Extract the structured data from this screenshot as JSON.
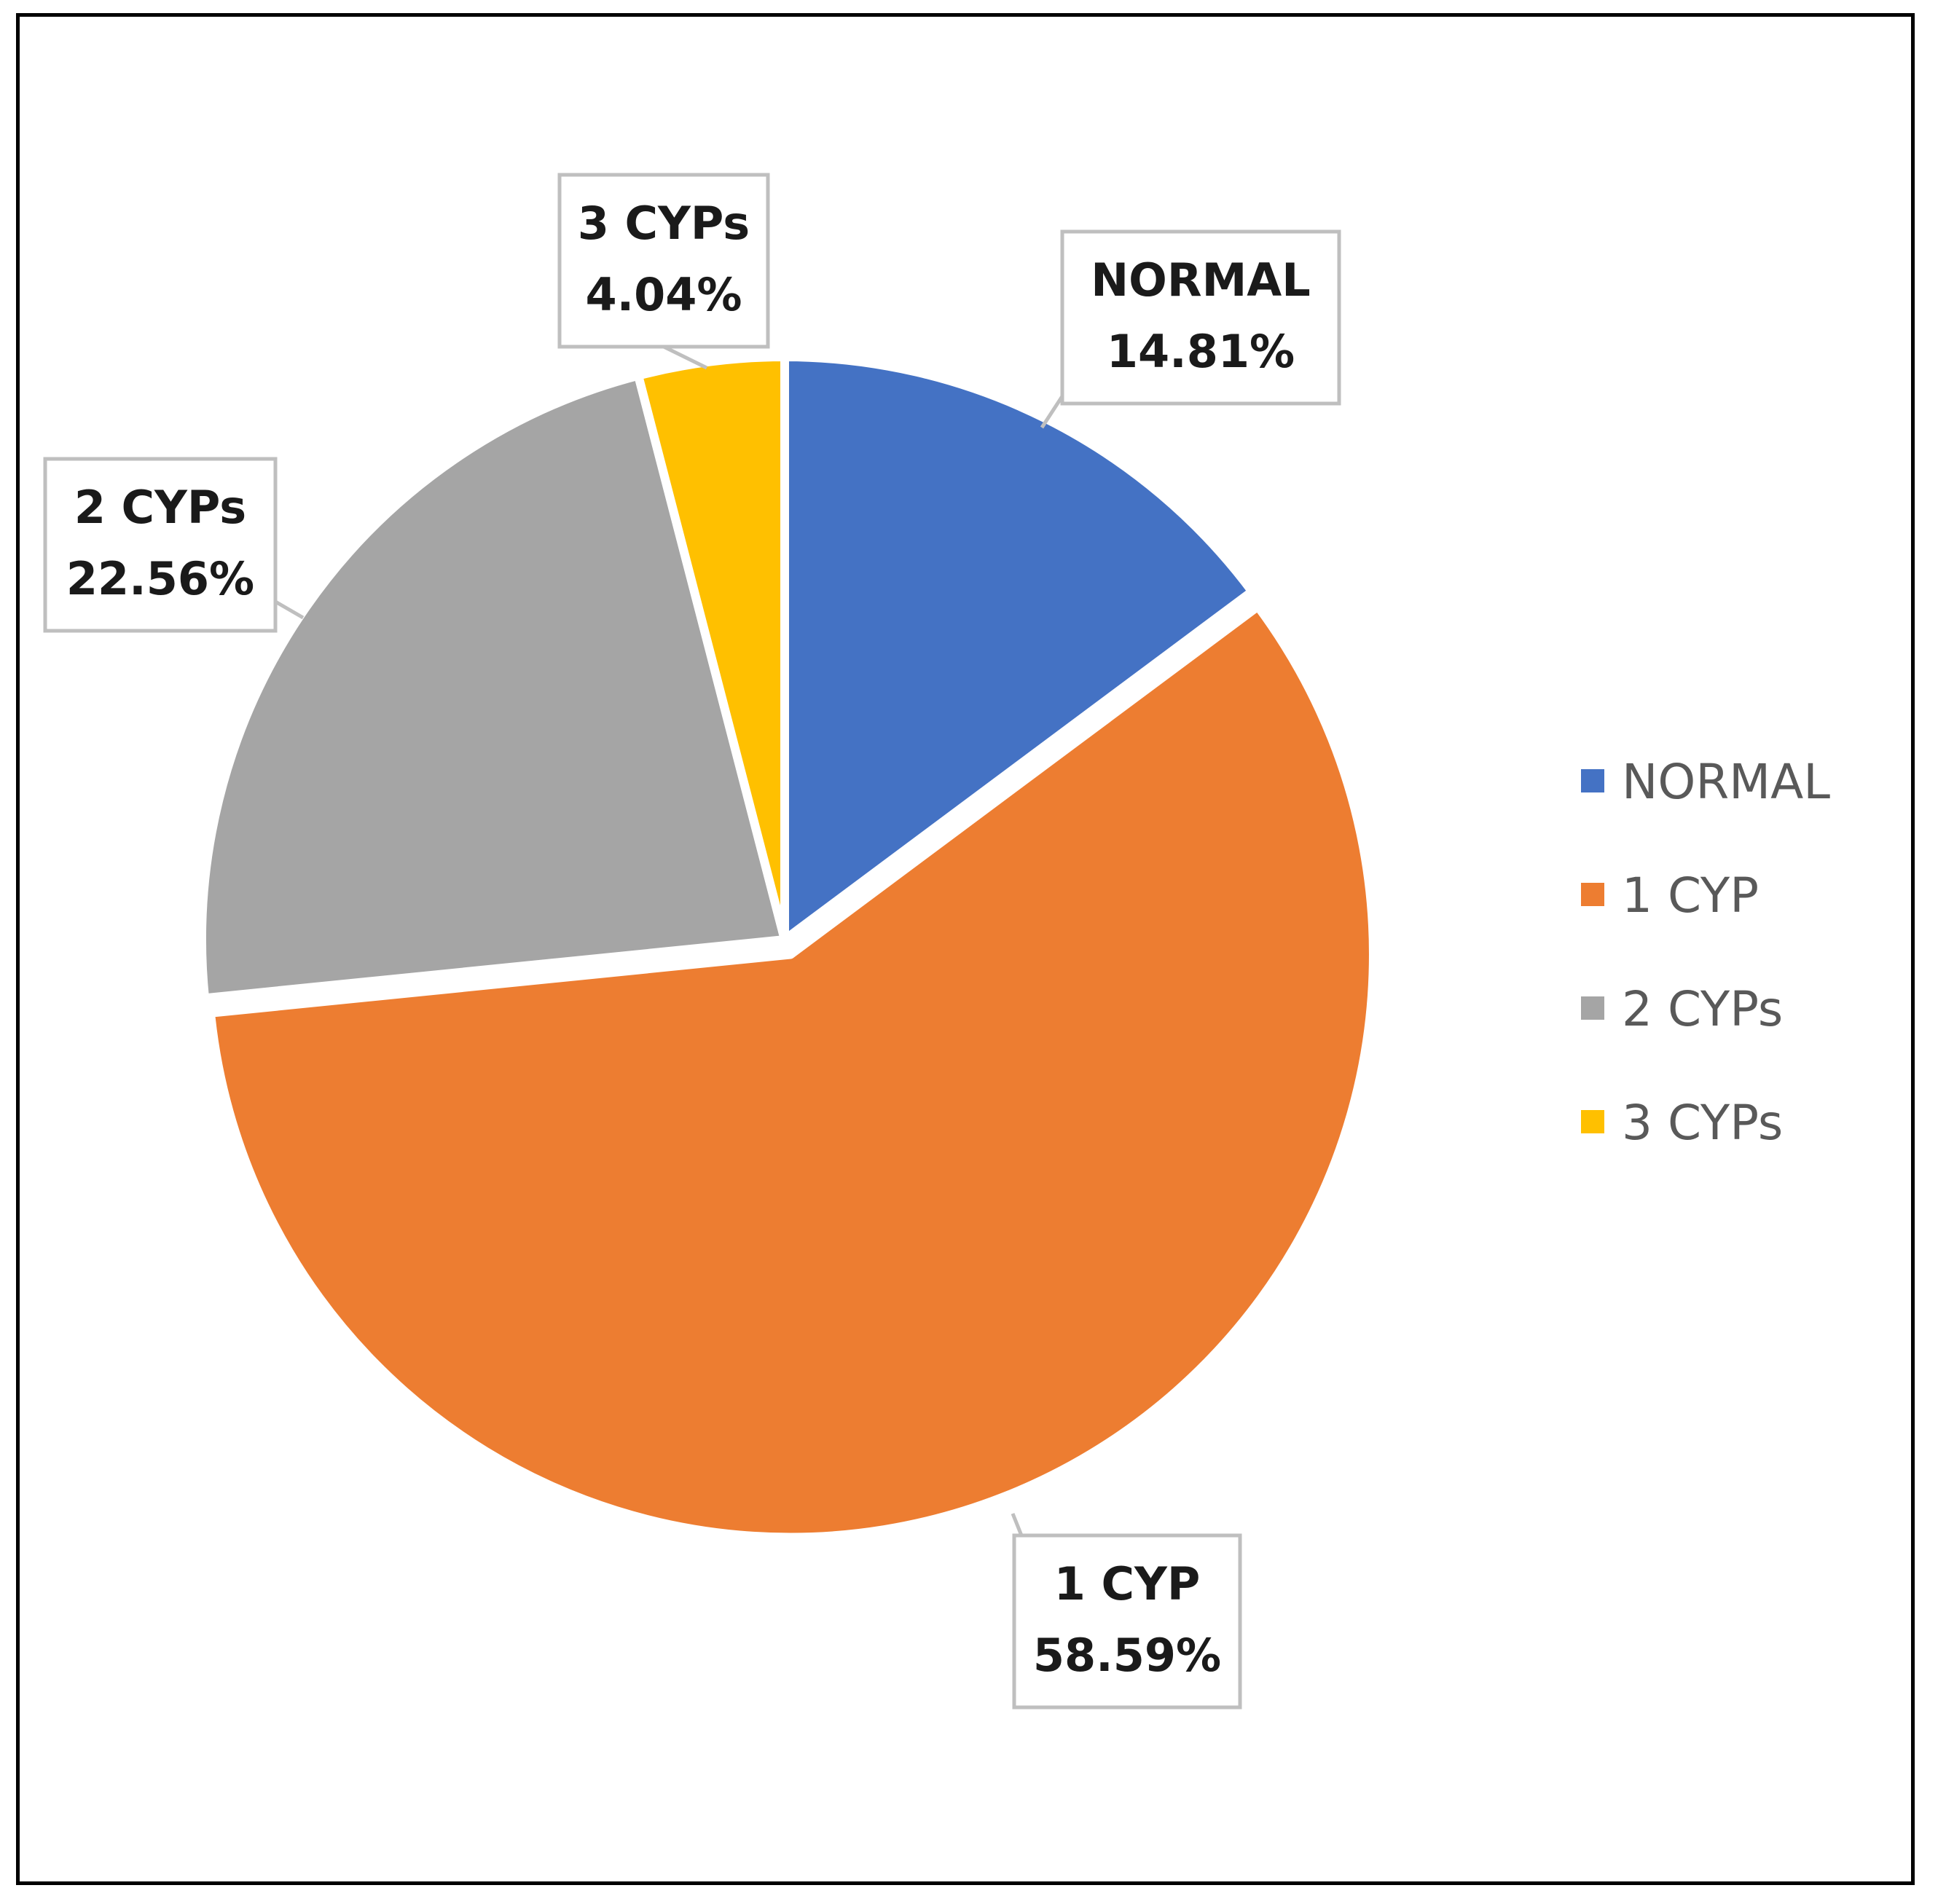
{
  "chart_data": {
    "type": "pie",
    "categories": [
      "NORMAL",
      "1 CYP",
      "2 CYPs",
      "3 CYPs"
    ],
    "values": [
      14.81,
      58.59,
      22.56,
      4.04
    ],
    "value_labels": [
      "14.81%",
      "58.59%",
      "22.56%",
      "4.04%"
    ],
    "colors": [
      "#4472C4",
      "#ED7D31",
      "#A5A5A5",
      "#FFC000"
    ],
    "title": "",
    "legend_position": "right",
    "start_angle": "12 o'clock, clockwise"
  }
}
